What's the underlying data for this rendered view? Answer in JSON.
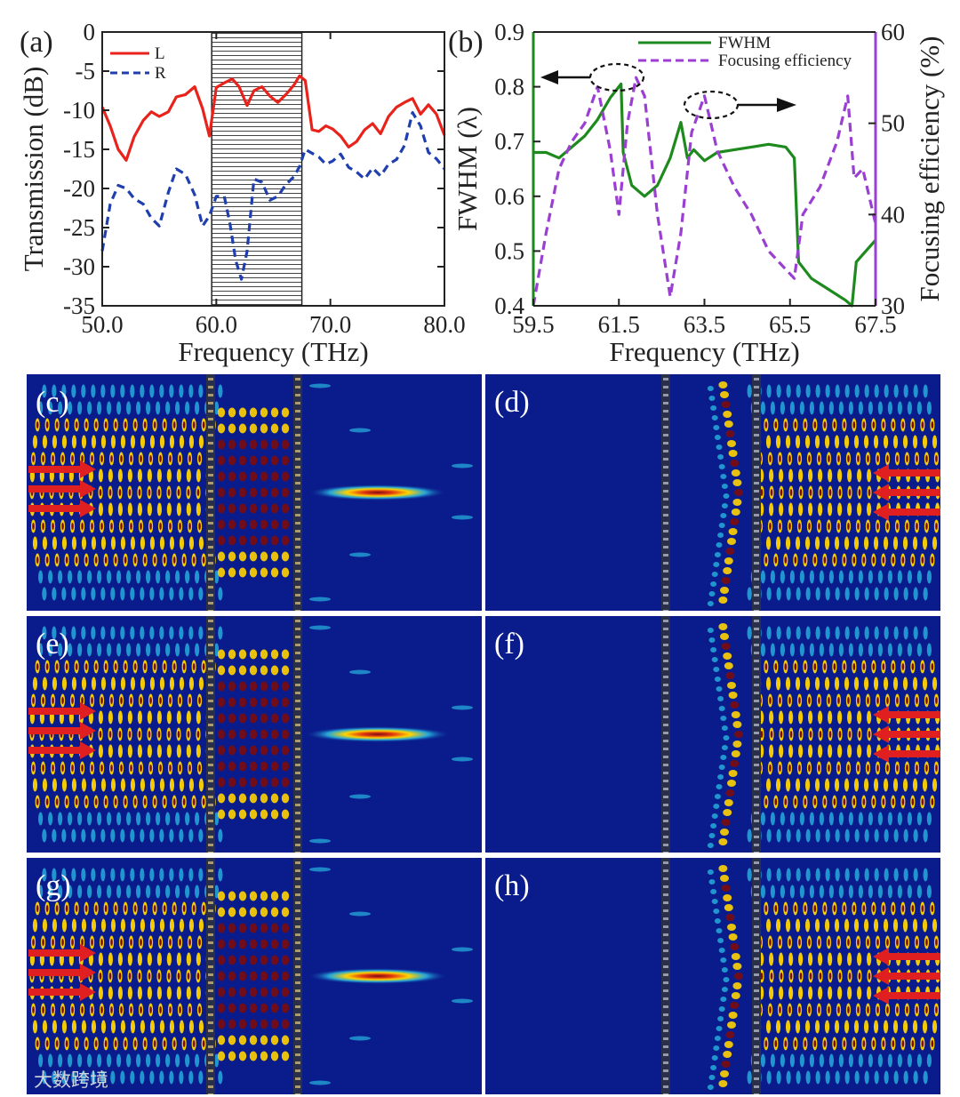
{
  "chart_data": [
    {
      "panel": "(a)",
      "type": "line",
      "xlabel": "Frequency (THz)",
      "ylabel": "Transmission (dB)",
      "xlim": [
        50,
        80
      ],
      "ylim": [
        -35,
        0
      ],
      "xticks": [
        "50.0",
        "60.0",
        "70.0",
        "80.0"
      ],
      "yticks": [
        "0",
        "-5",
        "-10",
        "-15",
        "-20",
        "-25",
        "-30",
        "-35"
      ],
      "shaded_band": [
        59.6,
        67.5
      ],
      "legend_position": "top-left",
      "series": [
        {
          "name": "L",
          "color": "#e8231c",
          "style": "solid",
          "x": [
            50,
            50.7,
            51.4,
            52.1,
            52.8,
            53.6,
            54.3,
            55.0,
            55.8,
            56.5,
            57.3,
            58.1,
            58.8,
            59.4,
            60.0,
            60.7,
            61.4,
            62.0,
            62.7,
            63.3,
            64.0,
            64.7,
            65.4,
            66.1,
            66.8,
            67.3,
            67.8,
            68.4,
            69.0,
            69.6,
            70.2,
            70.9,
            71.6,
            72.3,
            73.0,
            73.7,
            74.4,
            75.1,
            75.8,
            76.5,
            77.2,
            77.9,
            78.6,
            79.3,
            80
          ],
          "y": [
            -9.6,
            -12.0,
            -15.0,
            -16.4,
            -13.4,
            -11.3,
            -10.2,
            -10.8,
            -10.2,
            -8.3,
            -8.0,
            -7.0,
            -9.8,
            -13.3,
            -7.1,
            -6.5,
            -6.0,
            -7.0,
            -9.4,
            -7.5,
            -7.0,
            -8.2,
            -9.0,
            -8.0,
            -6.8,
            -5.6,
            -6.2,
            -12.5,
            -12.7,
            -12.0,
            -12.4,
            -13.3,
            -14.7,
            -14.0,
            -12.5,
            -11.7,
            -13.0,
            -10.8,
            -9.6,
            -9.0,
            -8.5,
            -10.5,
            -9.3,
            -10.5,
            -13.2
          ]
        },
        {
          "name": "R",
          "color": "#1f3fae",
          "style": "dashed",
          "x": [
            50,
            50.7,
            51.4,
            52.1,
            52.8,
            53.6,
            54.3,
            55.0,
            55.8,
            56.5,
            57.3,
            58.1,
            58.8,
            59.4,
            60.0,
            60.7,
            61.2,
            61.7,
            62.2,
            62.7,
            63.3,
            64.0,
            64.7,
            65.4,
            66.1,
            66.8,
            67.3,
            67.8,
            68.4,
            69.0,
            69.6,
            70.2,
            70.9,
            71.6,
            72.3,
            73.0,
            73.7,
            74.4,
            75.1,
            75.8,
            76.5,
            77.2,
            77.9,
            78.6,
            79.3,
            80
          ],
          "y": [
            -28.0,
            -22.0,
            -19.6,
            -20.0,
            -21.3,
            -22.0,
            -23.8,
            -24.8,
            -20.5,
            -17.5,
            -18.2,
            -20.8,
            -24.8,
            -23.5,
            -21.0,
            -21.0,
            -24.5,
            -29.2,
            -31.6,
            -28.0,
            -18.8,
            -19.2,
            -21.5,
            -21.0,
            -19.5,
            -18.5,
            -17.2,
            -15.0,
            -15.5,
            -16.0,
            -16.9,
            -16.5,
            -15.6,
            -17.3,
            -17.9,
            -18.8,
            -17.4,
            -18.4,
            -16.9,
            -16.3,
            -14.5,
            -10.3,
            -12.0,
            -15.4,
            -16.2,
            -17.5
          ]
        }
      ]
    },
    {
      "panel": "(b)",
      "type": "line",
      "xlabel": "Frequency (THz)",
      "ylabel_left": "FWHM (λ)",
      "ylabel_right": "Focusing efficiency (%)",
      "xlim": [
        59.5,
        67.5
      ],
      "ylim_left": [
        0.4,
        0.9
      ],
      "ylim_right": [
        30,
        60
      ],
      "xticks": [
        "59.5",
        "61.5",
        "63.5",
        "65.5",
        "67.5"
      ],
      "yticks_left": [
        "0.4",
        "0.5",
        "0.6",
        "0.7",
        "0.8",
        "0.9"
      ],
      "yticks_right": [
        "30",
        "40",
        "50",
        "60"
      ],
      "legend_position": "top-right",
      "series": [
        {
          "name": "FWHM",
          "axis": "left",
          "color": "#1e8a1e",
          "style": "solid",
          "x": [
            59.5,
            59.8,
            60.1,
            60.4,
            60.7,
            61.0,
            61.3,
            61.55,
            61.6,
            61.8,
            62.1,
            62.4,
            62.7,
            62.95,
            63.1,
            63.25,
            63.5,
            63.8,
            64.2,
            64.6,
            65.0,
            65.4,
            65.6,
            65.7,
            66.0,
            66.4,
            66.8,
            66.95,
            67.05,
            67.5
          ],
          "y": [
            0.68,
            0.68,
            0.67,
            0.69,
            0.71,
            0.74,
            0.78,
            0.805,
            0.68,
            0.62,
            0.6,
            0.62,
            0.67,
            0.735,
            0.67,
            0.685,
            0.665,
            0.68,
            0.685,
            0.69,
            0.695,
            0.69,
            0.67,
            0.48,
            0.45,
            0.43,
            0.41,
            0.4,
            0.48,
            0.52
          ]
        },
        {
          "name": "Focusing efficiency",
          "axis": "right",
          "color": "#9a3fd1",
          "style": "dashed",
          "x": [
            59.5,
            59.8,
            60.1,
            60.4,
            60.7,
            61.0,
            61.3,
            61.5,
            61.7,
            61.9,
            62.1,
            62.4,
            62.7,
            62.95,
            63.2,
            63.5,
            63.8,
            64.2,
            64.6,
            65.0,
            65.4,
            65.6,
            65.8,
            66.2,
            66.6,
            66.85,
            67.0,
            67.2,
            67.5
          ],
          "y": [
            30,
            38,
            45,
            48,
            50,
            54,
            47,
            40,
            50,
            55,
            53,
            40,
            31,
            38,
            49,
            53,
            47,
            43,
            40,
            36,
            34,
            33,
            40,
            43,
            48,
            53,
            44,
            45,
            39
          ]
        }
      ],
      "annotations": [
        "arrow-left-from-dashed-ellipse",
        "arrow-right-from-dashed-ellipse"
      ]
    },
    {
      "type": "field-maps",
      "panels": [
        "(c)",
        "(d)",
        "(e)",
        "(f)",
        "(g)",
        "(h)"
      ],
      "incidence": [
        "left",
        "right",
        "left",
        "right",
        "left",
        "right"
      ],
      "focus_strength": [
        0.85,
        0,
        1.0,
        0,
        0.9,
        0
      ]
    }
  ],
  "colors": {
    "field_background": "#0a1c8c",
    "field_mid": "#27b4e0",
    "field_hot": "#ffd400",
    "field_peak": "#7a0d0d",
    "incident_arrow": "#e02020"
  },
  "watermark": "大数跨境"
}
